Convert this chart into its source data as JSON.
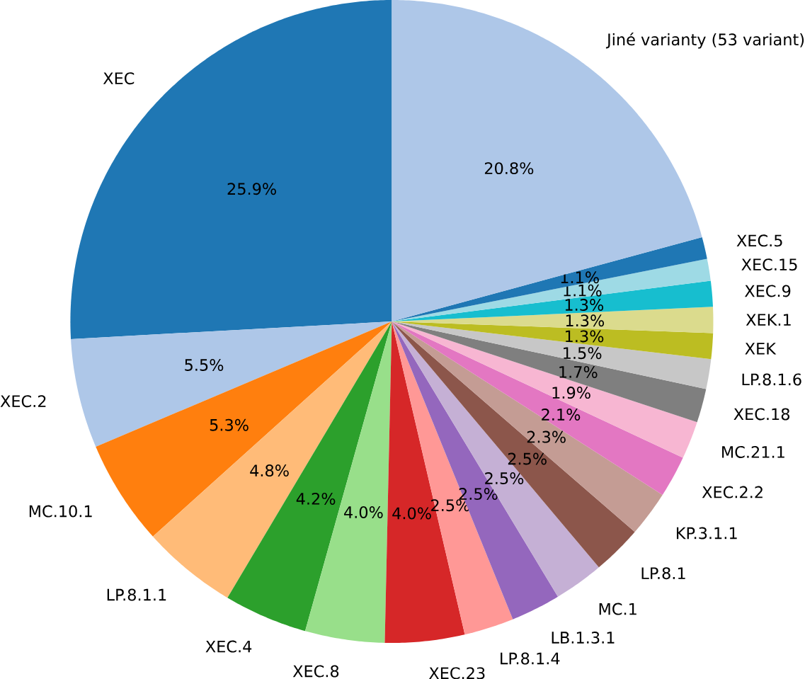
{
  "chart_data": {
    "type": "pie",
    "categories": [
      "XEC",
      "XEC.2",
      "MC.10.1",
      "LP.8.1.1",
      "XEC.4",
      "XEC.8",
      "XEC.23",
      "LP.8.1.4",
      "LB.1.3.1",
      "MC.1",
      "LP.8.1",
      "KP.3.1.1",
      "XEC.2.2",
      "MC.21.1",
      "XEC.18",
      "LP.8.1.6",
      "XEK",
      "XEK.1",
      "XEC.9",
      "XEC.15",
      "XEC.5",
      "Jiné varianty (53 variant)"
    ],
    "values": [
      25.9,
      5.5,
      5.3,
      4.8,
      4.2,
      4.0,
      4.0,
      2.5,
      2.5,
      2.5,
      2.5,
      2.3,
      2.1,
      1.9,
      1.7,
      1.5,
      1.3,
      1.3,
      1.3,
      1.1,
      1.1,
      20.8
    ],
    "value_labels": [
      "25.9%",
      "5.5%",
      "5.3%",
      "4.8%",
      "4.2%",
      "4.0%",
      "4.0%",
      "2.5%",
      "2.5%",
      "2.5%",
      "2.5%",
      "2.3%",
      "2.1%",
      "1.9%",
      "1.7%",
      "1.5%",
      "1.3%",
      "1.3%",
      "1.3%",
      "1.1%",
      "1.1%",
      "20.8%"
    ],
    "colors": [
      "#1f77b4",
      "#aec7e8",
      "#ff7f0e",
      "#ffbb78",
      "#2ca02c",
      "#98df8a",
      "#d62728",
      "#ff9896",
      "#9467bd",
      "#c5b0d5",
      "#8c564b",
      "#c49c94",
      "#e377c2",
      "#f7b6d2",
      "#7f7f7f",
      "#c7c7c7",
      "#bcbd22",
      "#dbdb8d",
      "#17becf",
      "#9edae5",
      "#1f77b4",
      "#aec7e8"
    ]
  }
}
